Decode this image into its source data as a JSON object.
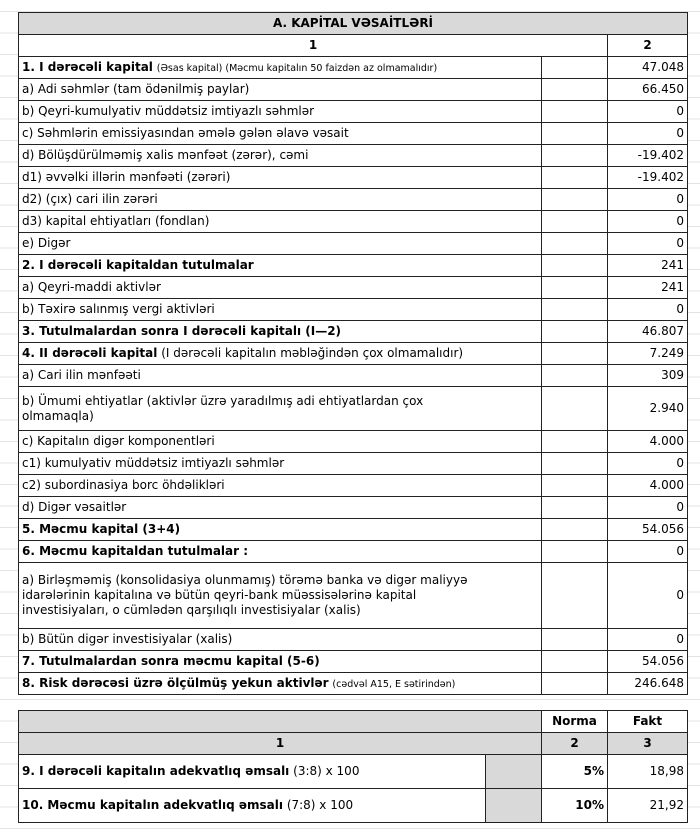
{
  "capital": {
    "title": "A. KAPİTAL VƏSAİTLƏRİ",
    "columns": [
      "1",
      "2"
    ],
    "rows": [
      {
        "head": "1. I dərəcəli kapital",
        "note": "(Əsas kapital) (Məcmu kapitalın 50 faizdən  az olmamalıdır)",
        "value": "47.048"
      },
      {
        "label": "a) Adi səhmlər (tam ödənilmiş paylar)",
        "value": "66.450"
      },
      {
        "label": "b) Qeyri-kumulyativ müddətsiz imtiyazlı səhmlər",
        "value": "0"
      },
      {
        "label": "c) Səhmlərin emissiyasından əmələ gələn  əlavə vəsait",
        "value": "0"
      },
      {
        "label": "d)   Bölüşdürülməmiş xalis mənfəət (zərər), cəmi",
        "value": "-19.402"
      },
      {
        "label": "d1) əvvəlki illərin mənfəəti (zərəri)",
        "value": "-19.402"
      },
      {
        "label": "d2) (çıx) cari ilin zərəri",
        "value": "0"
      },
      {
        "label": "d3) kapital ehtiyatları (fondlan)",
        "value": "0"
      },
      {
        "label": "e) Digər",
        "value": "0"
      },
      {
        "head": "2. I dərəcəli kapitaldan  tutulmalar",
        "value": "241"
      },
      {
        "label": "a) Qeyri-maddi aktivlər",
        "value": "241"
      },
      {
        "label": "b) Təxirə salınmış vergi aktivləri",
        "value": "0"
      },
      {
        "head": "3. Tutulmalardan  sonra I dərəcəli kapitalı (I—2)",
        "value": "46.807"
      },
      {
        "head": "4. II dərəcəli  kapital",
        "plain": "(I dərəcəli  kapitalın  məbləğindən çox olmamalıdır)",
        "value": "7.249"
      },
      {
        "label": "a) Cari ilin mənfəəti",
        "value": "309"
      },
      {
        "label": "b) Ümumi ehtiyatlar (aktivlər üzrə yaradılmış adi ehtiyatlardan çox\nolmamaqla)",
        "value": "2.940"
      },
      {
        "label": "c) Kapitalın digər komponentləri",
        "value": "4.000"
      },
      {
        "label": "c1) kumulyativ müddətsiz imtiyazlı səhmlər",
        "value": "0"
      },
      {
        "label": "c2) subordinasiya borc öhdəlikləri",
        "value": "4.000"
      },
      {
        "label": "d) Digər vəsaitlər",
        "value": "0"
      },
      {
        "head": "5. Məcmu kapital (3+4)",
        "value": "54.056"
      },
      {
        "head": "6. Məcmu kapitaldan tutulmalar :",
        "value": "0"
      },
      {
        "label": "a) Birləşməmiş (konsolidasiya olunmamış) törəmə banka və digər maliyyə\nidarələrinin kapitalına və bütün qeyri-bank müəssisələrinə kapital\ninvestisiyaları, o cümlədən qarşılıqlı investisiyalar (xalis)",
        "value": "0"
      },
      {
        "label": "b) Bütün digər investisiyalar (xalis)",
        "value": "0"
      },
      {
        "head": "7. Tutulmalardan  sonra məcmu kapital (5-6)",
        "value": "54.056"
      },
      {
        "head": "8. Risk dərəcəsi üzrə ölçülmüş  yekun aktivlər",
        "note": "(cədvəl A15, E sətirindən)",
        "value": "246.648"
      }
    ]
  },
  "ratios": {
    "columns": [
      "Norma",
      "Fakt"
    ],
    "numbers": [
      "1",
      "2",
      "3"
    ],
    "rows": [
      {
        "head": "9. I dərəcəli  kapitalın  adekvatlıq  əmsalı",
        "plain": "(3:8) x 100",
        "norm": "5%",
        "fact": "18,98"
      },
      {
        "head": "10. Məcmu kapitalın  adekvatlıq  əmsalı",
        "plain": "(7:8) x 100",
        "norm": "10%",
        "fact": "21,92"
      }
    ]
  }
}
